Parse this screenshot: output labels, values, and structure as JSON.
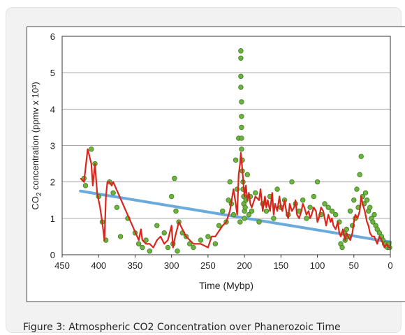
{
  "caption": "Figure 3: Atmospheric CO2 Concentration over Phanerozoic Time",
  "chart_data": {
    "type": "scatter",
    "title": "",
    "xlabel": "Time (Mybp)",
    "ylabel": "CO2 concentration (ppmv x 10³)",
    "xlim": [
      450,
      0
    ],
    "ylim": [
      0,
      6
    ],
    "xticks": [
      "450",
      "400",
      "350",
      "300",
      "250",
      "200",
      "150",
      "100",
      "50",
      "0"
    ],
    "yticks": [
      "0",
      "1",
      "2",
      "3",
      "4",
      "5",
      "6"
    ],
    "grid": "horizontal",
    "colors": {
      "points": "#6db33f",
      "point_edge": "#3e7d1e",
      "line": "#d9261c",
      "trend": "#5aa3d8"
    },
    "series": [
      {
        "kind": "scatter",
        "x": [
          420,
          418,
          410,
          405,
          400,
          395,
          390,
          385,
          380,
          375,
          370,
          360,
          350,
          345,
          340,
          335,
          330,
          320,
          310,
          305,
          300,
          298,
          296,
          294,
          292,
          290,
          285,
          280,
          275,
          270,
          260,
          250,
          240,
          235,
          230,
          225,
          222,
          220,
          218,
          215,
          212,
          210,
          208,
          206,
          205,
          205,
          205,
          205,
          204,
          204,
          204,
          204,
          204,
          203,
          203,
          202,
          202,
          201,
          201,
          200,
          200,
          199,
          198,
          196,
          194,
          192,
          190,
          185,
          180,
          175,
          170,
          165,
          160,
          155,
          150,
          145,
          140,
          135,
          130,
          125,
          120,
          115,
          110,
          105,
          100,
          95,
          90,
          85,
          80,
          75,
          70,
          68,
          66,
          64,
          62,
          60,
          58,
          55,
          52,
          50,
          48,
          46,
          44,
          42,
          40,
          38,
          36,
          34,
          32,
          30,
          28,
          26,
          24,
          22,
          20,
          18,
          15,
          12,
          10,
          8,
          6,
          4,
          2,
          1
        ],
        "y": [
          2.1,
          1.9,
          2.9,
          2.5,
          1.6,
          0.9,
          0.4,
          2.0,
          1.7,
          1.3,
          0.5,
          1.0,
          0.6,
          0.3,
          0.2,
          0.4,
          0.1,
          0.8,
          0.6,
          0.2,
          1.6,
          0.3,
          2.1,
          1.2,
          0.1,
          0.9,
          0.6,
          0.5,
          0.3,
          0.2,
          0.4,
          0.5,
          0.3,
          0.8,
          1.2,
          0.9,
          1.5,
          2.0,
          1.4,
          1.1,
          2.6,
          1.8,
          3.2,
          0.9,
          5.6,
          5.4,
          4.9,
          4.6,
          4.2,
          3.8,
          3.5,
          3.2,
          2.9,
          2.6,
          2.3,
          2.0,
          1.8,
          1.6,
          1.4,
          1.2,
          1.0,
          1.3,
          1.5,
          2.2,
          1.1,
          1.6,
          1.2,
          1.7,
          0.9,
          1.4,
          1.2,
          1.6,
          1.0,
          1.8,
          1.3,
          1.5,
          1.1,
          2.0,
          1.4,
          1.2,
          1.5,
          1.0,
          1.3,
          1.6,
          2.0,
          1.1,
          1.4,
          1.3,
          1.2,
          1.1,
          0.9,
          0.3,
          0.2,
          0.6,
          0.4,
          0.7,
          0.5,
          1.2,
          0.8,
          1.5,
          1.0,
          1.8,
          1.3,
          2.2,
          2.7,
          1.6,
          1.4,
          1.7,
          1.5,
          1.2,
          1.3,
          1.0,
          0.9,
          1.1,
          0.8,
          0.7,
          0.6,
          0.5,
          0.4,
          0.3,
          0.3,
          0.2,
          0.3,
          0.2
        ]
      },
      {
        "kind": "line",
        "x": [
          425,
          420,
          415,
          410,
          408,
          405,
          402,
          400,
          398,
          395,
          392,
          390,
          388,
          385,
          382,
          380,
          345,
          342,
          340,
          335,
          330,
          325,
          320,
          315,
          310,
          305,
          300,
          298,
          295,
          290,
          285,
          280,
          270,
          260,
          250,
          245,
          240,
          230,
          225,
          220,
          215,
          212,
          210,
          208,
          206,
          205,
          204,
          202,
          200,
          198,
          196,
          194,
          192,
          190,
          185,
          180,
          178,
          175,
          172,
          170,
          168,
          165,
          162,
          160,
          158,
          155,
          152,
          150,
          148,
          145,
          142,
          140,
          138,
          135,
          132,
          130,
          128,
          125,
          122,
          120,
          118,
          115,
          112,
          110,
          108,
          105,
          102,
          100,
          98,
          95,
          92,
          90,
          88,
          85,
          82,
          80,
          78,
          75,
          72,
          70,
          68,
          65,
          62,
          60,
          58,
          55,
          52,
          50,
          48,
          45,
          42,
          40,
          38,
          35,
          32,
          30,
          28,
          25,
          22,
          20,
          18,
          15,
          12,
          10,
          8,
          5,
          2,
          0
        ],
        "y": [
          2.1,
          2.0,
          2.9,
          2.5,
          1.9,
          2.5,
          1.7,
          1.5,
          1.3,
          0.9,
          0.4,
          1.6,
          2.0,
          2.0,
          1.9,
          2.0,
          0.4,
          0.7,
          0.4,
          0.3,
          0.3,
          0.2,
          0.4,
          0.5,
          0.3,
          0.4,
          0.8,
          0.2,
          0.5,
          0.9,
          0.7,
          0.5,
          0.3,
          0.3,
          0.2,
          0.5,
          0.5,
          0.8,
          0.9,
          1.2,
          1.8,
          1.4,
          1.1,
          2.2,
          2.5,
          2.8,
          2.6,
          2.1,
          1.6,
          1.9,
          1.5,
          1.7,
          1.4,
          1.3,
          1.6,
          1.5,
          1.8,
          1.2,
          1.6,
          1.3,
          1.5,
          1.2,
          1.7,
          1.1,
          1.4,
          1.2,
          1.6,
          1.3,
          1.2,
          1.5,
          1.1,
          1.0,
          1.4,
          1.2,
          1.3,
          1.5,
          1.1,
          1.0,
          1.2,
          1.4,
          1.3,
          1.1,
          1.2,
          1.0,
          1.1,
          1.3,
          1.2,
          0.9,
          1.0,
          1.3,
          1.2,
          1.0,
          0.8,
          1.1,
          0.9,
          1.0,
          0.8,
          0.7,
          0.9,
          0.6,
          0.5,
          0.7,
          0.4,
          0.6,
          0.5,
          0.4,
          0.6,
          0.9,
          1.1,
          1.0,
          1.2,
          1.6,
          1.4,
          1.2,
          0.9,
          0.8,
          0.6,
          0.5,
          0.5,
          0.4,
          0.3,
          0.5,
          0.4,
          0.3,
          0.2,
          0.3,
          0.2,
          0.2
        ]
      },
      {
        "kind": "trend",
        "x": [
          425,
          0
        ],
        "y": [
          1.75,
          0.35
        ]
      }
    ]
  }
}
